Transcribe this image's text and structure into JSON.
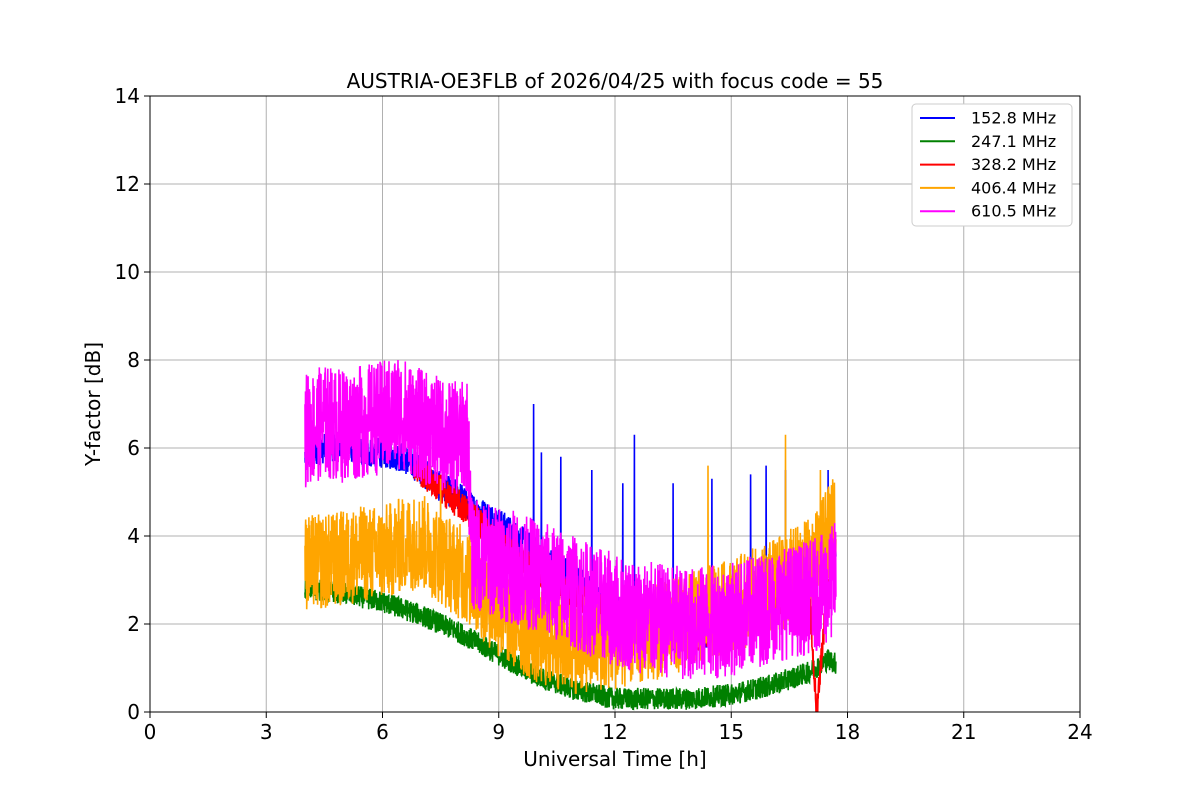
{
  "chart_data": {
    "type": "line",
    "title": "AUSTRIA-OE3FLB of 2026/04/25 with focus code = 55",
    "xlabel": "Universal Time [h]",
    "ylabel": "Y-factor [dB]",
    "xlim": [
      0,
      24
    ],
    "ylim": [
      0,
      14
    ],
    "xticks": [
      0,
      3,
      6,
      9,
      12,
      15,
      18,
      21,
      24
    ],
    "yticks": [
      0,
      2,
      4,
      6,
      8,
      10,
      12,
      14
    ],
    "grid": true,
    "legend_position": "top-right",
    "series": [
      {
        "name": "152.8 MHz",
        "color": "#0000ff",
        "x": [
          4.0,
          4.5,
          5.0,
          5.5,
          6.0,
          6.5,
          7.0,
          7.5,
          8.0,
          8.2,
          9.0,
          10.0,
          11.0,
          12.0,
          12.5,
          13.0,
          14.0,
          15.0,
          16.0,
          17.0,
          17.5,
          17.7
        ],
        "y": [
          5.8,
          6.0,
          6.1,
          5.9,
          5.9,
          5.8,
          5.5,
          5.1,
          4.9,
          4.7,
          4.3,
          3.6,
          3.0,
          2.4,
          1.9,
          1.8,
          1.7,
          2.0,
          2.6,
          3.3,
          3.7,
          3.5
        ],
        "spikes": [
          [
            9.9,
            7.0
          ],
          [
            10.1,
            5.9
          ],
          [
            10.6,
            5.8
          ],
          [
            11.4,
            5.5
          ],
          [
            12.2,
            5.2
          ],
          [
            12.5,
            6.3
          ],
          [
            13.5,
            5.2
          ],
          [
            14.5,
            5.3
          ],
          [
            15.5,
            5.4
          ],
          [
            15.9,
            5.6
          ],
          [
            16.4,
            5.5
          ],
          [
            17.5,
            5.5
          ]
        ]
      },
      {
        "name": "247.1 MHz",
        "color": "#008000",
        "x": [
          4.0,
          5.0,
          6.0,
          7.0,
          8.0,
          9.0,
          10.0,
          11.0,
          12.0,
          13.0,
          14.0,
          15.0,
          16.0,
          17.0,
          17.5,
          17.7
        ],
        "y": [
          2.8,
          2.7,
          2.5,
          2.2,
          1.8,
          1.3,
          0.8,
          0.5,
          0.3,
          0.3,
          0.3,
          0.4,
          0.6,
          0.9,
          1.2,
          1.1
        ]
      },
      {
        "name": "328.2 MHz",
        "color": "#ff0000",
        "x": [
          6.8,
          7.2,
          7.6,
          8.0,
          8.4,
          9.0,
          10.0,
          11.0,
          12.0,
          13.0,
          14.0,
          15.0,
          16.0,
          16.5,
          17.0,
          17.2,
          17.5
        ],
        "y": [
          5.6,
          5.3,
          5.0,
          4.7,
          4.4,
          3.8,
          3.2,
          2.6,
          2.2,
          1.8,
          1.7,
          1.9,
          2.4,
          2.6,
          2.8,
          0.0,
          3.0
        ]
      },
      {
        "name": "406.4 MHz",
        "color": "#ffa500",
        "x": [
          4.0,
          4.5,
          5.0,
          5.5,
          6.0,
          6.5,
          7.0,
          7.5,
          8.0,
          8.5,
          9.0,
          10.0,
          11.0,
          12.0,
          13.0,
          14.0,
          15.0,
          16.0,
          17.0,
          17.5,
          17.7
        ],
        "y": [
          3.4,
          3.4,
          3.5,
          3.6,
          3.6,
          3.8,
          3.9,
          3.5,
          3.2,
          2.8,
          2.3,
          1.7,
          1.5,
          1.6,
          1.8,
          2.1,
          2.4,
          2.8,
          3.3,
          4.0,
          4.4
        ],
        "spikes": [
          [
            14.4,
            5.6
          ],
          [
            16.4,
            6.3
          ],
          [
            17.3,
            5.5
          ],
          [
            7.5,
            5.3
          ]
        ]
      },
      {
        "name": "610.5 MHz",
        "color": "#ff00ff",
        "x": [
          4.0,
          4.5,
          5.0,
          5.5,
          6.0,
          6.5,
          7.0,
          7.5,
          8.0,
          8.2,
          8.3,
          9.0,
          10.0,
          11.0,
          12.0,
          13.0,
          14.0,
          15.0,
          16.0,
          17.0,
          17.5,
          17.7
        ],
        "y": [
          6.4,
          6.6,
          6.5,
          6.6,
          6.7,
          6.8,
          6.5,
          6.3,
          6.2,
          6.3,
          3.6,
          3.4,
          3.1,
          2.7,
          2.3,
          2.1,
          2.0,
          2.1,
          2.4,
          2.6,
          2.8,
          3.1
        ],
        "spikes": [
          [
            6.4,
            8.0
          ],
          [
            5.0,
            7.7
          ]
        ]
      }
    ]
  }
}
